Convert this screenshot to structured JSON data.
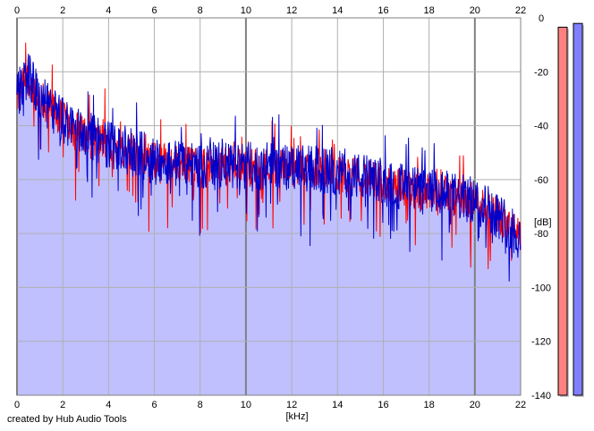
{
  "footer": {
    "credit": "created by Hub Audio Tools"
  },
  "chart_data": {
    "type": "area",
    "xlabel": "[kHz]",
    "ylabel": "[dB]",
    "xlim": [
      0,
      22
    ],
    "ylim": [
      -140,
      0
    ],
    "x_ticks": [
      "0",
      "2",
      "4",
      "6",
      "8",
      "10",
      "12",
      "14",
      "16",
      "18",
      "20",
      "22"
    ],
    "y_ticks": [
      "0",
      "-20",
      "-40",
      "-60",
      "-80",
      "-100",
      "-120",
      "-140"
    ],
    "grid": true,
    "fill_color": "#c0c0ff",
    "series": [
      {
        "color": "#ff0000",
        "x": [
          0,
          0.25,
          0.5,
          0.75,
          1,
          1.5,
          2,
          2.5,
          3,
          3.5,
          4,
          4.5,
          5,
          5.5,
          6,
          6.5,
          7,
          7.5,
          8,
          8.5,
          9,
          9.5,
          10,
          10.5,
          11,
          11.5,
          12,
          12.5,
          13,
          13.5,
          14,
          14.5,
          15,
          15.5,
          16,
          16.5,
          17,
          17.5,
          18,
          18.5,
          19,
          19.5,
          20,
          20.5,
          21,
          21.5,
          22
        ],
        "y": [
          -30,
          -25,
          -22,
          -27,
          -30,
          -34,
          -38,
          -41,
          -43,
          -45,
          -47,
          -48,
          -50,
          -51,
          -53,
          -53,
          -54,
          -54,
          -55,
          -55,
          -55,
          -55,
          -55,
          -55,
          -55,
          -55,
          -56,
          -56,
          -56,
          -57,
          -58,
          -58,
          -59,
          -60,
          -61,
          -62,
          -63,
          -64,
          -65,
          -65,
          -66,
          -67,
          -68,
          -70,
          -73,
          -77,
          -82
        ]
      },
      {
        "color": "#0000cc",
        "x": [
          0,
          0.25,
          0.5,
          0.75,
          1,
          1.5,
          2,
          2.5,
          3,
          3.5,
          4,
          4.5,
          5,
          5.5,
          6,
          6.5,
          7,
          7.5,
          8,
          8.5,
          9,
          9.5,
          10,
          10.5,
          11,
          11.5,
          12,
          12.5,
          13,
          13.5,
          14,
          14.5,
          15,
          15.5,
          16,
          16.5,
          17,
          17.5,
          18,
          18.5,
          19,
          19.5,
          20,
          20.5,
          21,
          21.5,
          22
        ],
        "y": [
          -30,
          -24,
          -20,
          -26,
          -30,
          -34,
          -38,
          -41,
          -43,
          -45,
          -47,
          -48,
          -50,
          -51,
          -53,
          -53,
          -54,
          -54,
          -55,
          -55,
          -55,
          -55,
          -55,
          -55,
          -55,
          -55,
          -56,
          -56,
          -56,
          -57,
          -58,
          -58,
          -59,
          -60,
          -61,
          -62,
          -63,
          -64,
          -65,
          -65,
          -66,
          -67,
          -68,
          -70,
          -73,
          -77,
          -82
        ]
      }
    ],
    "meters": [
      {
        "color": "#ff8080",
        "level": 0.98
      },
      {
        "color": "#8080ff",
        "level": 0.99
      }
    ]
  }
}
